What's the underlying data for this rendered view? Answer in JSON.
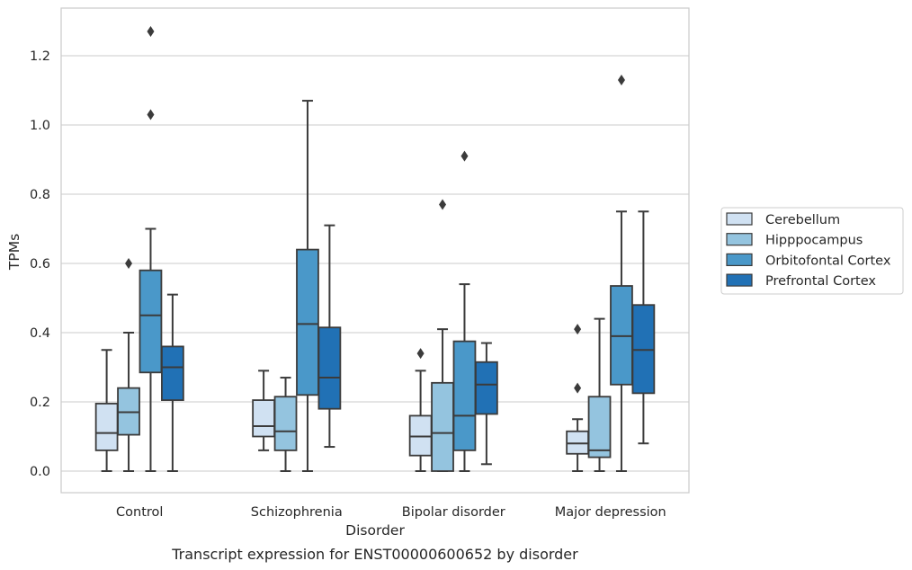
{
  "chart_data": {
    "type": "box",
    "caption": "Transcript expression for ENST00000600652 by disorder",
    "xlabel": "Disorder",
    "ylabel": "TPMs",
    "ylim": [
      -0.06,
      1.33
    ],
    "yticks": [
      0.0,
      0.2,
      0.4,
      0.6,
      0.8,
      1.0,
      1.2
    ],
    "ytick_labels": [
      "0.0",
      "0.2",
      "0.4",
      "0.6",
      "0.8",
      "1.0",
      "1.2"
    ],
    "grid": "horizontal",
    "legend_position": "right",
    "categories": [
      "Control",
      "Schizophrenia",
      "Bipolar disorder",
      "Major depression"
    ],
    "series": [
      {
        "name": "Cerebellum",
        "color": "#d0e1f2",
        "boxes": [
          {
            "whisker_low": 0.0,
            "q1": 0.06,
            "median": 0.11,
            "q3": 0.195,
            "whisker_high": 0.35,
            "outliers": []
          },
          {
            "whisker_low": 0.06,
            "q1": 0.1,
            "median": 0.13,
            "q3": 0.205,
            "whisker_high": 0.29,
            "outliers": []
          },
          {
            "whisker_low": 0.0,
            "q1": 0.045,
            "median": 0.1,
            "q3": 0.16,
            "whisker_high": 0.29,
            "outliers": [
              0.34
            ]
          },
          {
            "whisker_low": 0.0,
            "q1": 0.05,
            "median": 0.08,
            "q3": 0.115,
            "whisker_high": 0.15,
            "outliers": [
              0.24,
              0.41
            ]
          }
        ]
      },
      {
        "name": "Hipppocampus",
        "color": "#94c4df",
        "boxes": [
          {
            "whisker_low": 0.0,
            "q1": 0.105,
            "median": 0.17,
            "q3": 0.24,
            "whisker_high": 0.4,
            "outliers": [
              0.6
            ]
          },
          {
            "whisker_low": 0.0,
            "q1": 0.06,
            "median": 0.115,
            "q3": 0.215,
            "whisker_high": 0.27,
            "outliers": []
          },
          {
            "whisker_low": 0.0,
            "q1": 0.0,
            "median": 0.11,
            "q3": 0.255,
            "whisker_high": 0.41,
            "outliers": [
              0.77
            ]
          },
          {
            "whisker_low": 0.0,
            "q1": 0.04,
            "median": 0.06,
            "q3": 0.215,
            "whisker_high": 0.44,
            "outliers": []
          }
        ]
      },
      {
        "name": "Orbitofontal Cortex",
        "color": "#4a98c9",
        "boxes": [
          {
            "whisker_low": 0.0,
            "q1": 0.285,
            "median": 0.45,
            "q3": 0.58,
            "whisker_high": 0.7,
            "outliers": [
              1.03,
              1.27
            ]
          },
          {
            "whisker_low": 0.0,
            "q1": 0.22,
            "median": 0.425,
            "q3": 0.64,
            "whisker_high": 1.07,
            "outliers": []
          },
          {
            "whisker_low": 0.0,
            "q1": 0.06,
            "median": 0.16,
            "q3": 0.375,
            "whisker_high": 0.54,
            "outliers": [
              0.91
            ]
          },
          {
            "whisker_low": 0.0,
            "q1": 0.25,
            "median": 0.39,
            "q3": 0.535,
            "whisker_high": 0.75,
            "outliers": [
              1.13
            ]
          }
        ]
      },
      {
        "name": "Prefrontal Cortex",
        "color": "#2171b5",
        "boxes": [
          {
            "whisker_low": 0.0,
            "q1": 0.205,
            "median": 0.3,
            "q3": 0.36,
            "whisker_high": 0.51,
            "outliers": []
          },
          {
            "whisker_low": 0.07,
            "q1": 0.18,
            "median": 0.27,
            "q3": 0.415,
            "whisker_high": 0.71,
            "outliers": []
          },
          {
            "whisker_low": 0.02,
            "q1": 0.165,
            "median": 0.25,
            "q3": 0.315,
            "whisker_high": 0.37,
            "outliers": []
          },
          {
            "whisker_low": 0.08,
            "q1": 0.225,
            "median": 0.35,
            "q3": 0.48,
            "whisker_high": 0.75,
            "outliers": []
          }
        ]
      }
    ]
  }
}
